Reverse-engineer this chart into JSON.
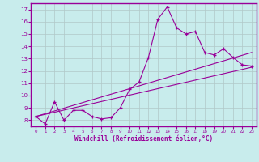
{
  "xlabel": "Windchill (Refroidissement éolien,°C)",
  "xlim": [
    -0.5,
    23.5
  ],
  "ylim": [
    7.5,
    17.5
  ],
  "xticks": [
    0,
    1,
    2,
    3,
    4,
    5,
    6,
    7,
    8,
    9,
    10,
    11,
    12,
    13,
    14,
    15,
    16,
    17,
    18,
    19,
    20,
    21,
    22,
    23
  ],
  "yticks": [
    8,
    9,
    10,
    11,
    12,
    13,
    14,
    15,
    16,
    17
  ],
  "bg_color": "#c8ecec",
  "line_color": "#990099",
  "grid_color": "#b0c8c8",
  "line1_x": [
    0,
    1,
    2,
    3,
    4,
    5,
    6,
    7,
    8,
    9,
    10,
    11,
    12,
    13,
    14,
    15,
    16,
    17,
    18,
    19,
    20,
    21,
    22,
    23
  ],
  "line1_y": [
    8.3,
    7.7,
    9.5,
    8.0,
    8.8,
    8.8,
    8.3,
    8.1,
    8.2,
    9.0,
    10.5,
    11.1,
    13.1,
    16.2,
    17.2,
    15.5,
    15.0,
    15.2,
    13.5,
    13.3,
    13.8,
    13.1,
    12.5,
    12.4
  ],
  "line2_x": [
    0,
    23
  ],
  "line2_y": [
    8.3,
    13.5
  ],
  "line3_x": [
    0,
    23
  ],
  "line3_y": [
    8.3,
    12.3
  ]
}
